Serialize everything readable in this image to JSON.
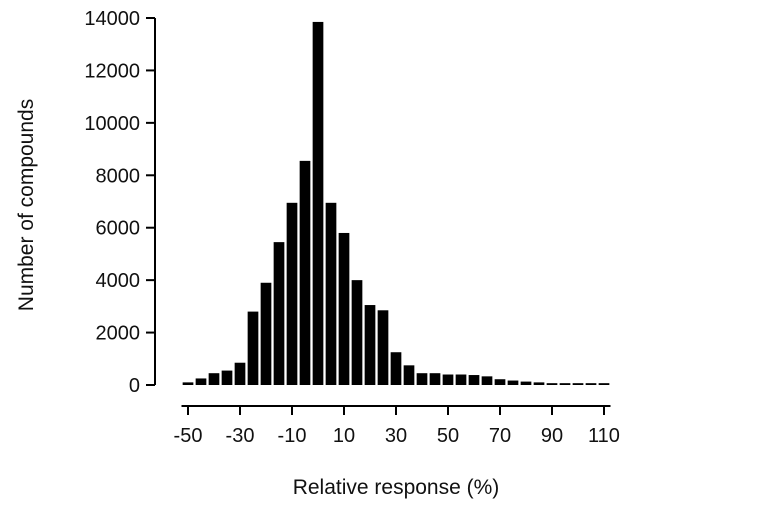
{
  "chart_data": {
    "type": "bar",
    "title": "",
    "xlabel": "Relative response (%)",
    "ylabel": "Number of compounds",
    "xlim": [
      -52.5,
      112.5
    ],
    "ylim": [
      0,
      14000
    ],
    "grid": false,
    "legend": "none",
    "bar_color": "#000000",
    "x_ticks": [
      -50,
      -30,
      -10,
      10,
      30,
      50,
      70,
      90,
      110
    ],
    "x_tick_labels": [
      "-50",
      "-30",
      "-10",
      "10",
      "30",
      "50",
      "70",
      "90",
      "110"
    ],
    "y_ticks": [
      0,
      2000,
      4000,
      6000,
      8000,
      10000,
      12000,
      14000
    ],
    "y_tick_labels": [
      "0",
      "2000",
      "4000",
      "6000",
      "8000",
      "10000",
      "12000",
      "14000"
    ],
    "bin_width": 5,
    "x": [
      -50,
      -45,
      -40,
      -35,
      -30,
      -25,
      -20,
      -15,
      -10,
      -5,
      0,
      5,
      10,
      15,
      20,
      25,
      30,
      35,
      40,
      45,
      50,
      55,
      60,
      65,
      70,
      75,
      80,
      85,
      90,
      95,
      100,
      105,
      110
    ],
    "values": [
      100,
      250,
      450,
      550,
      850,
      2800,
      3900,
      5450,
      6950,
      8550,
      13850,
      6950,
      5800,
      4000,
      3050,
      2850,
      1250,
      750,
      450,
      450,
      400,
      400,
      380,
      330,
      220,
      170,
      130,
      100,
      70,
      70,
      70,
      70,
      70
    ]
  }
}
